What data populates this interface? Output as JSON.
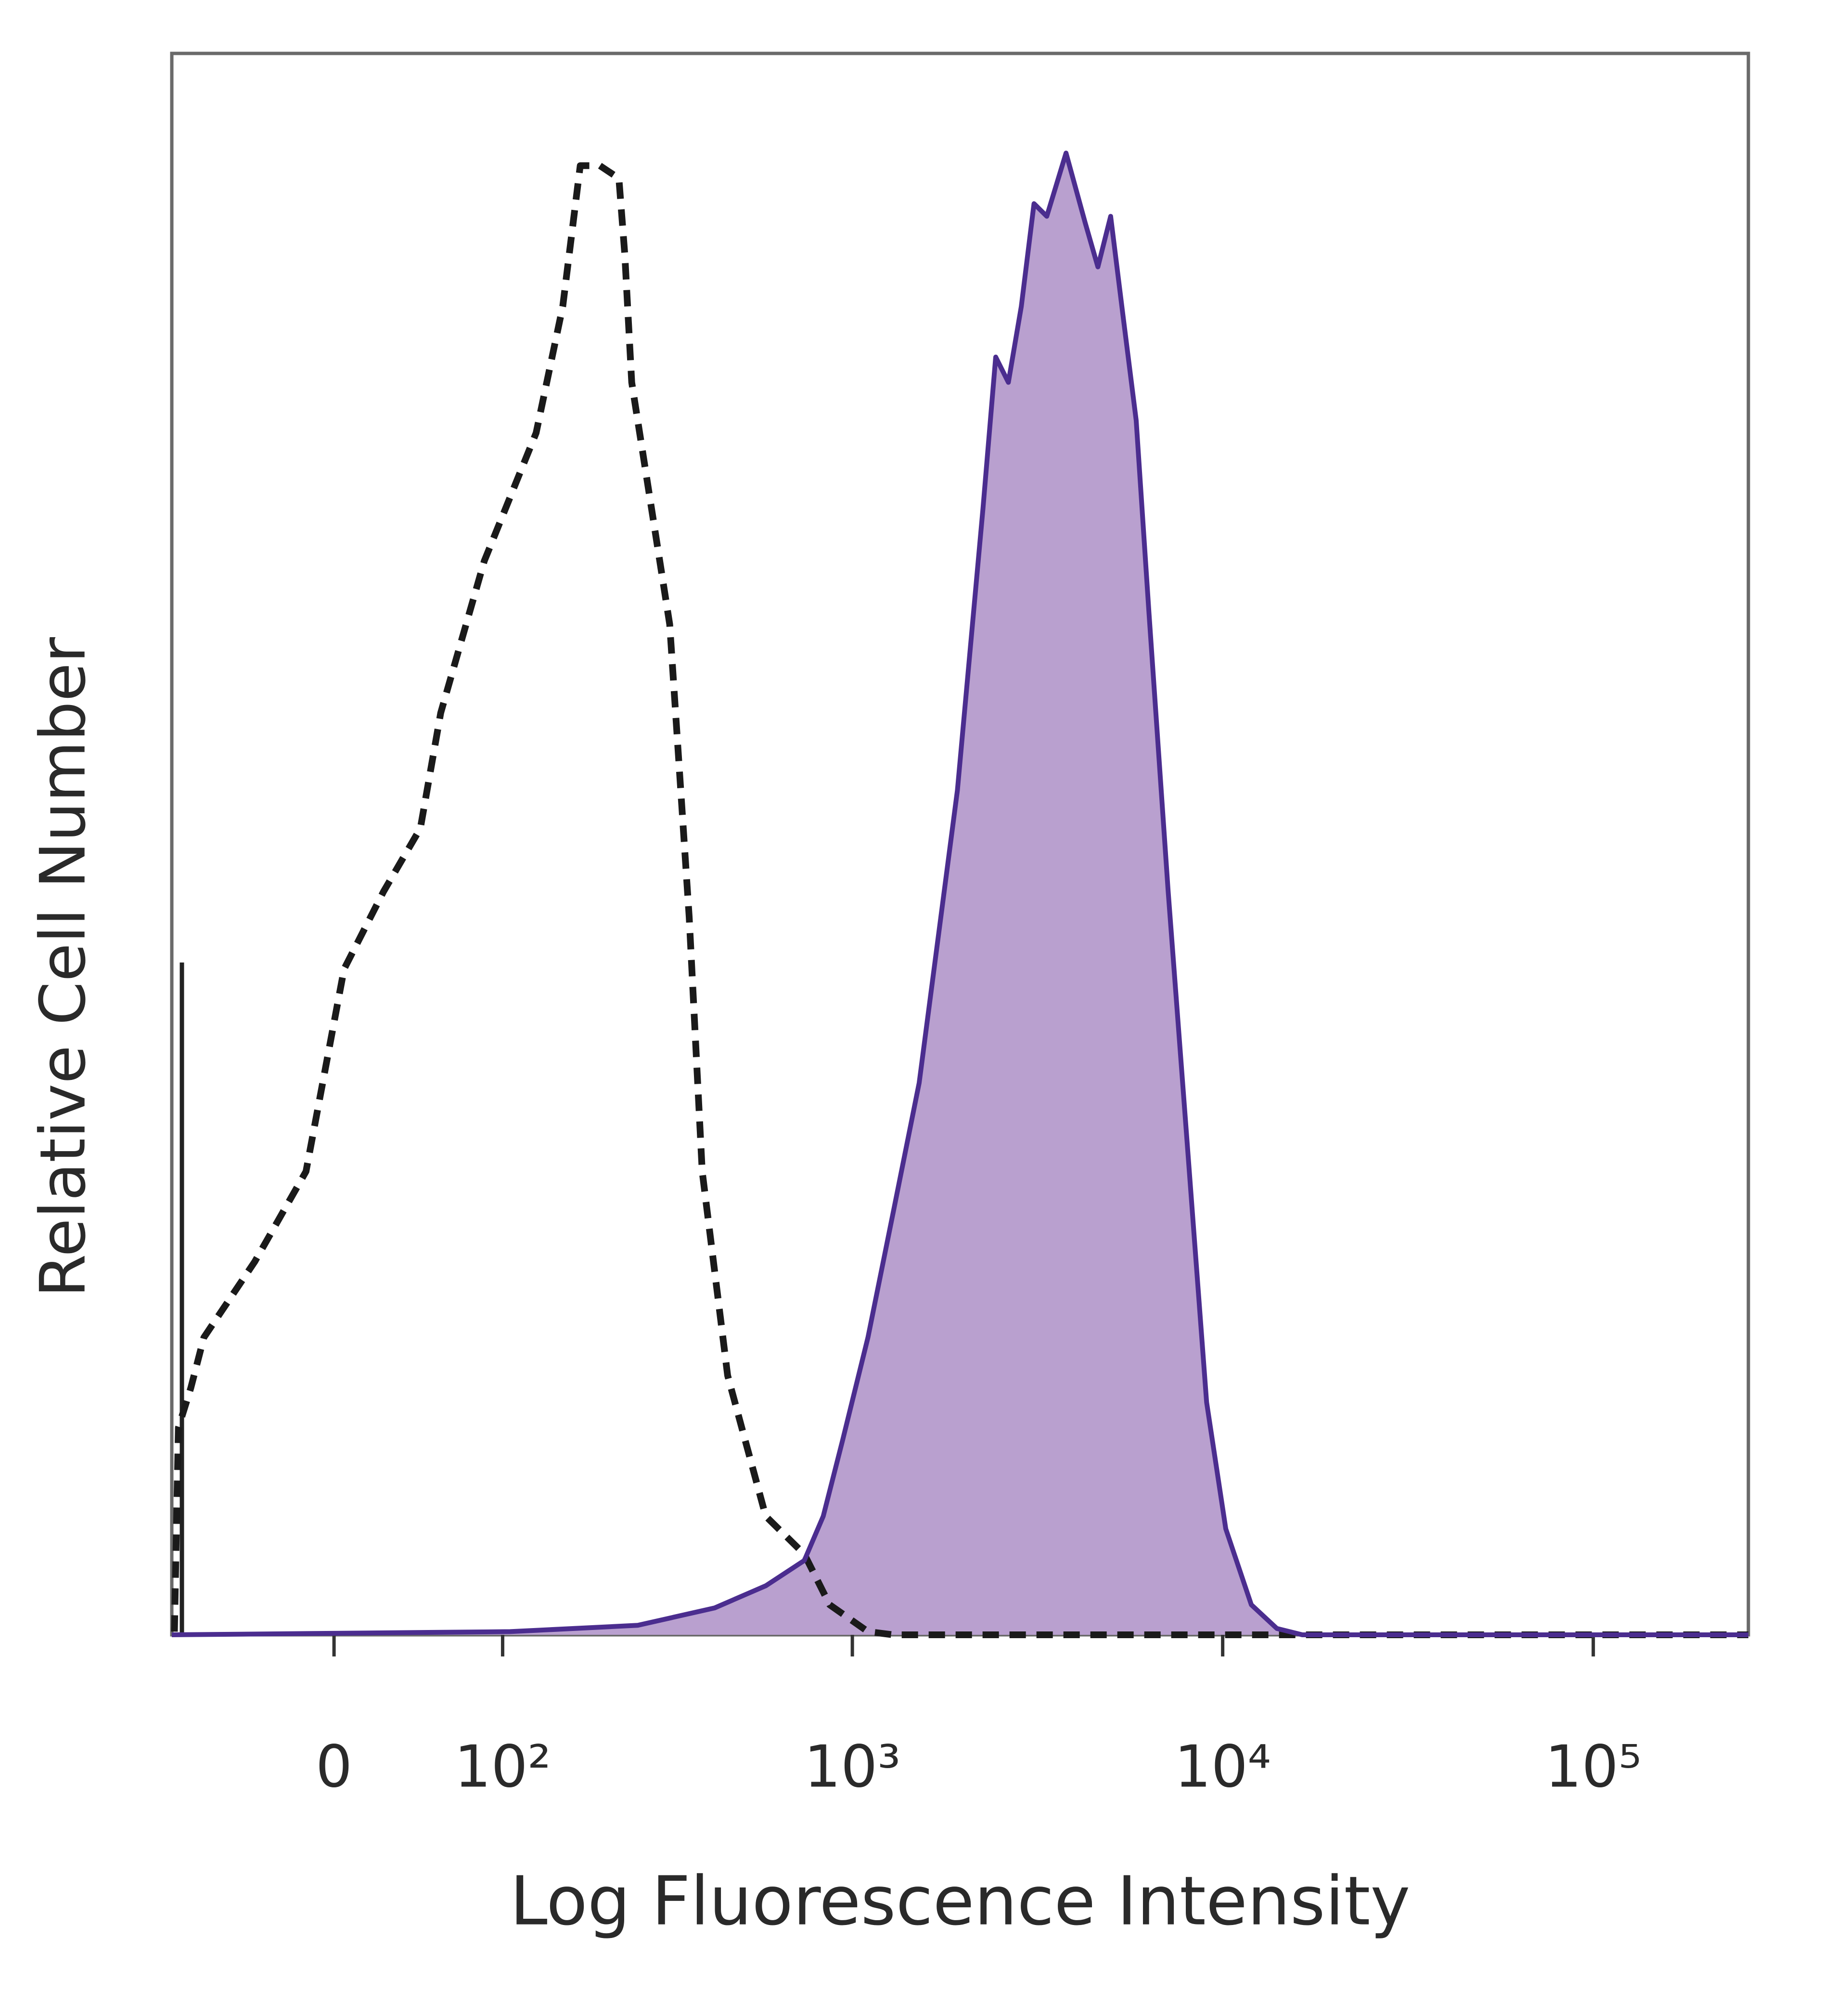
{
  "chart_data": {
    "type": "histogram-overlay",
    "x_label": "Log Fluorescence Intensity",
    "y_label": "Relative Cell Number",
    "xscale": "biexponential",
    "xlim": [
      -95,
      262144
    ],
    "ylim": [
      0,
      100
    ],
    "xticks": [
      0,
      {
        "value": 100,
        "label": "10²"
      },
      {
        "value": 1000,
        "label": "10³"
      },
      {
        "value": 10000,
        "label": "10⁴"
      },
      {
        "value": 100000,
        "label": "10⁵"
      }
    ],
    "series": [
      {
        "color": "#1a1a1a",
        "dashed": true,
        "x": [
          -93,
          -90,
          -81,
          -72,
          -41,
          -14,
          5,
          25,
          45,
          57,
          86,
          129,
          156,
          176,
          201,
          228,
          237,
          248,
          317,
          359,
          390,
          458,
          582,
          741,
          868,
          1102,
          1292,
          262144
        ],
        "values": [
          0.2,
          13.1,
          15.6,
          18.8,
          23.6,
          29.3,
          42.1,
          47,
          51,
          58.3,
          67.9,
          76,
          84,
          92.9,
          92.9,
          92.1,
          87.3,
          79.2,
          63.9,
          45.4,
          29.3,
          16.4,
          7.5,
          5.1,
          1.9,
          0.2,
          0,
          0
        ]
      },
      {
        "color": "#4b2d8f",
        "fill": "#b9a0cf",
        "x": [
          -95,
          106,
          258,
          422,
          582,
          741,
          834,
          941,
          1102,
          1292,
          1516,
          1923,
          2254,
          2440,
          2640,
          2861,
          3096,
          3352,
          3778,
          4254,
          4605,
          4985,
          5397,
          5842,
          6322,
          7127,
          8032,
          9050,
          10194,
          11947,
          14003,
          16402,
          262144
        ],
        "values": [
          0,
          0.2,
          0.6,
          1.7,
          3.1,
          4.7,
          7.5,
          12.3,
          18.8,
          26.8,
          34.9,
          53.4,
          71.2,
          80.8,
          79.2,
          84,
          90.5,
          89.7,
          93.7,
          89.3,
          86.5,
          89.7,
          83.2,
          76.8,
          64.7,
          47,
          30.9,
          14.7,
          6.7,
          1.9,
          0.4,
          0,
          0
        ]
      }
    ]
  }
}
